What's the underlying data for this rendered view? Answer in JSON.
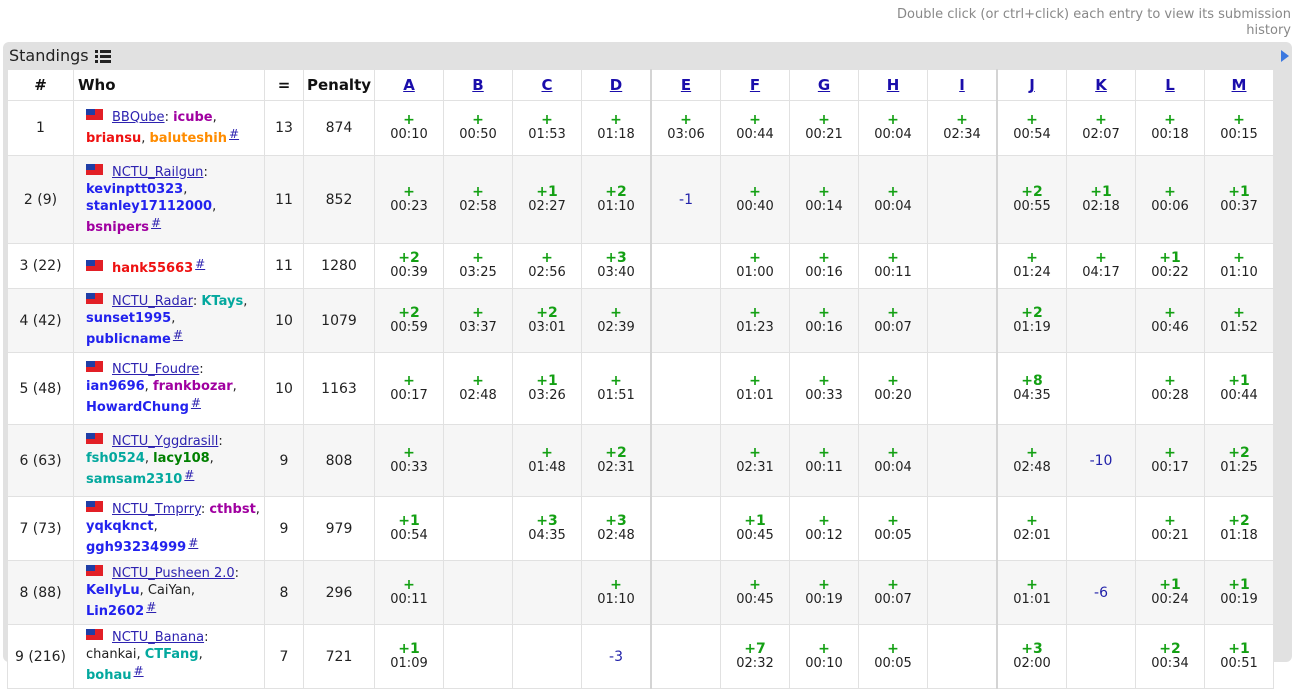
{
  "hint": "Double click (or ctrl+click) each entry to view its submission history",
  "panel_title": "Standings",
  "headers": {
    "rank": "#",
    "who": "Who",
    "solved": "=",
    "penalty": "Penalty"
  },
  "problems": [
    "A",
    "B",
    "C",
    "D",
    "E",
    "F",
    "G",
    "H",
    "I",
    "J",
    "K",
    "L",
    "M"
  ],
  "colors": {
    "accepted": "#14a014",
    "rejected": "#2222aa",
    "header_bg": "#e1e1e1",
    "link": "#2d22b0"
  },
  "rows": [
    {
      "rank": "1",
      "team": "BBQube",
      "members": [
        {
          "name": "icube",
          "color": "vio"
        },
        {
          "name": "briansu",
          "color": "red"
        },
        {
          "name": "baluteshih",
          "color": "org"
        }
      ],
      "solved": "13",
      "penalty": "874",
      "cells": [
        [
          "+",
          "00:10"
        ],
        [
          "+",
          "00:50"
        ],
        [
          "+",
          "01:53"
        ],
        [
          "+",
          "01:18"
        ],
        [
          "+",
          "03:06"
        ],
        [
          "+",
          "00:44"
        ],
        [
          "+",
          "00:21"
        ],
        [
          "+",
          "00:04"
        ],
        [
          "+",
          "02:34"
        ],
        [
          "+",
          "00:54"
        ],
        [
          "+",
          "02:07"
        ],
        [
          "+",
          "00:18"
        ],
        [
          "+",
          "00:15"
        ]
      ]
    },
    {
      "rank": "2 (9)",
      "team": "NCTU_Railgun",
      "members": [
        {
          "name": "kevinptt0323",
          "color": "blue"
        },
        {
          "name": "stanley17112000",
          "color": "blue"
        },
        {
          "name": "bsnipers",
          "color": "vio"
        }
      ],
      "solved": "11",
      "penalty": "852",
      "cells": [
        [
          "+",
          "00:23"
        ],
        [
          "+",
          "02:58"
        ],
        [
          "+1",
          "02:27"
        ],
        [
          "+2",
          "01:10"
        ],
        [
          "-1",
          ""
        ],
        [
          "+",
          "00:40"
        ],
        [
          "+",
          "00:14"
        ],
        [
          "+",
          "00:04"
        ],
        [
          "",
          ""
        ],
        [
          "+2",
          "00:55"
        ],
        [
          "+1",
          "02:18"
        ],
        [
          "+",
          "00:06"
        ],
        [
          "+1",
          "00:37"
        ]
      ]
    },
    {
      "rank": "3 (22)",
      "team": "",
      "members": [
        {
          "name": "hank55663",
          "color": "red"
        }
      ],
      "solved": "11",
      "penalty": "1280",
      "cells": [
        [
          "+2",
          "00:39"
        ],
        [
          "+",
          "03:25"
        ],
        [
          "+",
          "02:56"
        ],
        [
          "+3",
          "03:40"
        ],
        [
          "",
          ""
        ],
        [
          "+",
          "01:00"
        ],
        [
          "+",
          "00:16"
        ],
        [
          "+",
          "00:11"
        ],
        [
          "",
          ""
        ],
        [
          "+",
          "01:24"
        ],
        [
          "+",
          "04:17"
        ],
        [
          "+1",
          "00:22"
        ],
        [
          "+",
          "01:10"
        ]
      ]
    },
    {
      "rank": "4 (42)",
      "team": "NCTU_Radar",
      "members": [
        {
          "name": "KTays",
          "color": "cyan"
        },
        {
          "name": "sunset1995",
          "color": "blue"
        },
        {
          "name": "publicname",
          "color": "blue"
        }
      ],
      "solved": "10",
      "penalty": "1079",
      "cells": [
        [
          "+2",
          "00:59"
        ],
        [
          "+",
          "03:37"
        ],
        [
          "+2",
          "03:01"
        ],
        [
          "+",
          "02:39"
        ],
        [
          "",
          ""
        ],
        [
          "+",
          "01:23"
        ],
        [
          "+",
          "00:16"
        ],
        [
          "+",
          "00:07"
        ],
        [
          "",
          ""
        ],
        [
          "+2",
          "01:19"
        ],
        [
          "",
          ""
        ],
        [
          "+",
          "00:46"
        ],
        [
          "+",
          "01:52"
        ]
      ]
    },
    {
      "rank": "5 (48)",
      "team": "NCTU_Foudre",
      "members": [
        {
          "name": "ian9696",
          "color": "blue"
        },
        {
          "name": "frankbozar",
          "color": "vio"
        },
        {
          "name": "HowardChung",
          "color": "blue"
        }
      ],
      "solved": "10",
      "penalty": "1163",
      "cells": [
        [
          "+",
          "00:17"
        ],
        [
          "+",
          "02:48"
        ],
        [
          "+1",
          "03:26"
        ],
        [
          "+",
          "01:51"
        ],
        [
          "",
          ""
        ],
        [
          "+",
          "01:01"
        ],
        [
          "+",
          "00:33"
        ],
        [
          "+",
          "00:20"
        ],
        [
          "",
          ""
        ],
        [
          "+8",
          "04:35"
        ],
        [
          "",
          ""
        ],
        [
          "+",
          "00:28"
        ],
        [
          "+1",
          "00:44"
        ]
      ]
    },
    {
      "rank": "6 (63)",
      "team": "NCTU_Yggdrasill",
      "members": [
        {
          "name": "fsh0524",
          "color": "cyan"
        },
        {
          "name": "lacy108",
          "color": "green"
        },
        {
          "name": "samsam2310",
          "color": "cyan"
        }
      ],
      "solved": "9",
      "penalty": "808",
      "cells": [
        [
          "+",
          "00:33"
        ],
        [
          "",
          ""
        ],
        [
          "+",
          "01:48"
        ],
        [
          "+2",
          "02:31"
        ],
        [
          "",
          ""
        ],
        [
          "+",
          "02:31"
        ],
        [
          "+",
          "00:11"
        ],
        [
          "+",
          "00:04"
        ],
        [
          "",
          ""
        ],
        [
          "+",
          "02:48"
        ],
        [
          "-10",
          ""
        ],
        [
          "+",
          "00:17"
        ],
        [
          "+2",
          "01:25"
        ]
      ]
    },
    {
      "rank": "7 (73)",
      "team": "NCTU_Tmprry",
      "members": [
        {
          "name": "cthbst",
          "color": "vio"
        },
        {
          "name": "yqkqknct",
          "color": "blue"
        },
        {
          "name": "ggh93234999",
          "color": "blue"
        }
      ],
      "solved": "9",
      "penalty": "979",
      "cells": [
        [
          "+1",
          "00:54"
        ],
        [
          "",
          ""
        ],
        [
          "+3",
          "04:35"
        ],
        [
          "+3",
          "02:48"
        ],
        [
          "",
          ""
        ],
        [
          "+1",
          "00:45"
        ],
        [
          "+",
          "00:12"
        ],
        [
          "+",
          "00:05"
        ],
        [
          "",
          ""
        ],
        [
          "+",
          "02:01"
        ],
        [
          "",
          ""
        ],
        [
          "+",
          "00:21"
        ],
        [
          "+2",
          "01:18"
        ]
      ]
    },
    {
      "rank": "8 (88)",
      "team": "NCTU_Pusheen 2.0",
      "members": [
        {
          "name": "KellyLu",
          "color": "blue"
        },
        {
          "name": "CaiYan",
          "color": "gray"
        },
        {
          "name": "Lin2602",
          "color": "blue"
        }
      ],
      "solved": "8",
      "penalty": "296",
      "cells": [
        [
          "+",
          "00:11"
        ],
        [
          "",
          ""
        ],
        [
          "",
          ""
        ],
        [
          "+",
          "01:10"
        ],
        [
          "",
          ""
        ],
        [
          "+",
          "00:45"
        ],
        [
          "+",
          "00:19"
        ],
        [
          "+",
          "00:07"
        ],
        [
          "",
          ""
        ],
        [
          "+",
          "01:01"
        ],
        [
          "-6",
          ""
        ],
        [
          "+1",
          "00:24"
        ],
        [
          "+1",
          "00:19"
        ]
      ]
    },
    {
      "rank": "9 (216)",
      "team": "NCTU_Banana",
      "members": [
        {
          "name": "chankai",
          "color": "gray"
        },
        {
          "name": "CTFang",
          "color": "cyan"
        },
        {
          "name": "bohau",
          "color": "cyan"
        }
      ],
      "solved": "7",
      "penalty": "721",
      "cells": [
        [
          "+1",
          "01:09"
        ],
        [
          "",
          ""
        ],
        [
          "",
          ""
        ],
        [
          "-3",
          ""
        ],
        [
          "",
          ""
        ],
        [
          "+7",
          "02:32"
        ],
        [
          "+",
          "00:10"
        ],
        [
          "+",
          "00:05"
        ],
        [
          "",
          ""
        ],
        [
          "+3",
          "02:00"
        ],
        [
          "",
          ""
        ],
        [
          "+2",
          "00:34"
        ],
        [
          "+1",
          "00:51"
        ]
      ]
    }
  ]
}
